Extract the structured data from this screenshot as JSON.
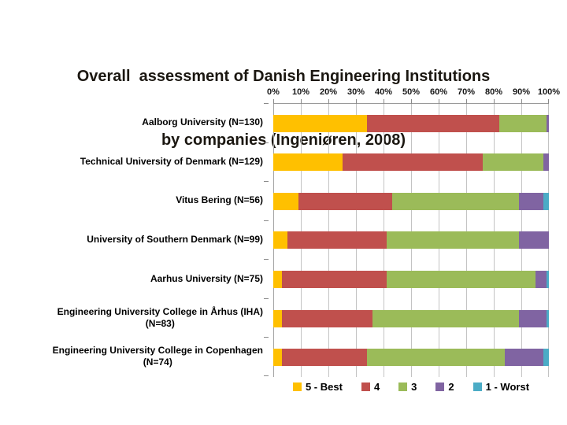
{
  "title": {
    "line1": "Overall  assessment of Danish Engineering Institutions",
    "line2": "by companies (Ingeniøren, 2008)"
  },
  "chart_data": {
    "type": "bar",
    "orientation": "horizontal-stacked",
    "title": "Overall assessment of Danish Engineering Institutions by companies (Ingeniøren, 2008)",
    "categories": [
      "Aalborg University (N=130)",
      "Technical University of Denmark (N=129)",
      "Vitus Bering (N=56)",
      "University of Southern Denmark (N=99)",
      "Aarhus University (N=75)",
      "Engineering University College in Århus (IHA)\n(N=83)",
      "Engineering University College in Copenhagen\n(N=74)"
    ],
    "series": [
      {
        "name": "5 - Best",
        "color": "#FFC000",
        "values": [
          34,
          25,
          9,
          5,
          3,
          3,
          3
        ]
      },
      {
        "name": "4",
        "color": "#C0504D",
        "values": [
          48,
          51,
          34,
          36,
          38,
          33,
          31
        ]
      },
      {
        "name": "3",
        "color": "#9BBB59",
        "values": [
          17,
          22,
          46,
          48,
          54,
          53,
          50
        ]
      },
      {
        "name": "2",
        "color": "#8064A2",
        "values": [
          1,
          2,
          9,
          11,
          4,
          10,
          14
        ]
      },
      {
        "name": "1 - Worst",
        "color": "#4BACC6",
        "values": [
          0,
          0,
          2,
          0,
          1,
          1,
          2
        ]
      }
    ],
    "x_axis": {
      "min": 0,
      "max": 100,
      "unit": "%",
      "ticks": [
        "0%",
        "10%",
        "20%",
        "30%",
        "40%",
        "50%",
        "60%",
        "70%",
        "80%",
        "90%",
        "100%"
      ]
    },
    "grid": true,
    "legend_position": "bottom"
  }
}
